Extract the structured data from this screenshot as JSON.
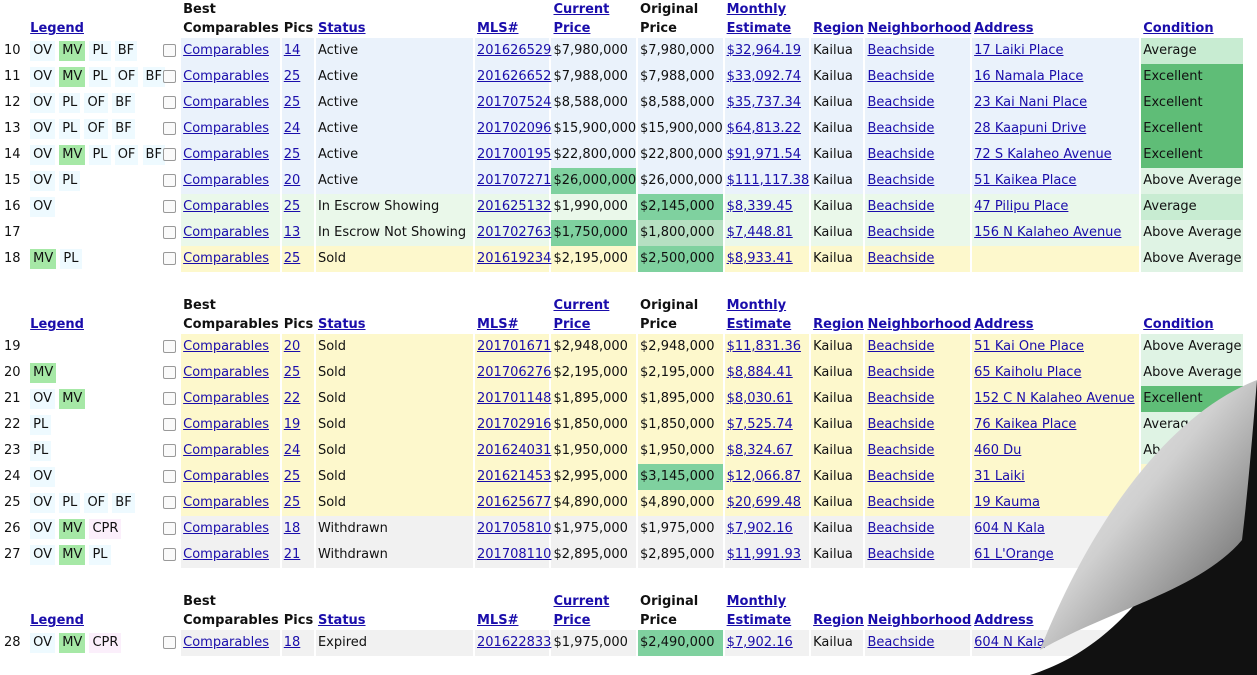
{
  "headers": {
    "legend": "Legend",
    "best": "Best",
    "comparables": "Comparables",
    "pics": "Pics",
    "status": "Status",
    "mls": "MLS#",
    "current": "Current",
    "current2": "Price",
    "original": "Original",
    "original2": "Price",
    "monthly": "Monthly",
    "estimate": "Estimate",
    "region": "Region",
    "neighborhood": "Neighborhood",
    "address": "Address",
    "condition": "Condition"
  },
  "sections": [
    {
      "rows": [
        {
          "num": "10",
          "tags": [
            "OV",
            "MV",
            "PL",
            "BF"
          ],
          "comp": "Comparables",
          "pics": "14",
          "status": "Active",
          "mls": "201626529",
          "current": "$7,980,000",
          "original": "$7,980,000",
          "monthly": "$32,964.19",
          "region": "Kailua",
          "neighborhood": "Beachside",
          "address": "17 Laiki Place",
          "condition": "Average"
        },
        {
          "num": "11",
          "tags": [
            "OV",
            "MV",
            "PL",
            "OF",
            "BF"
          ],
          "comp": "Comparables",
          "pics": "25",
          "status": "Active",
          "mls": "201626652",
          "current": "$7,988,000",
          "original": "$7,988,000",
          "monthly": "$33,092.74",
          "region": "Kailua",
          "neighborhood": "Beachside",
          "address": "16 Namala Place",
          "condition": "Excellent"
        },
        {
          "num": "12",
          "tags": [
            "OV",
            "PL",
            "OF",
            "BF"
          ],
          "comp": "Comparables",
          "pics": "25",
          "status": "Active",
          "mls": "201707524",
          "current": "$8,588,000",
          "original": "$8,588,000",
          "monthly": "$35,737.34",
          "region": "Kailua",
          "neighborhood": "Beachside",
          "address": "23 Kai Nani Place",
          "condition": "Excellent"
        },
        {
          "num": "13",
          "tags": [
            "OV",
            "PL",
            "OF",
            "BF"
          ],
          "comp": "Comparables",
          "pics": "24",
          "status": "Active",
          "mls": "201702096",
          "current": "$15,900,000",
          "original": "$15,900,000",
          "monthly": "$64,813.22",
          "region": "Kailua",
          "neighborhood": "Beachside",
          "address": "28 Kaapuni Drive",
          "condition": "Excellent"
        },
        {
          "num": "14",
          "tags": [
            "OV",
            "MV",
            "PL",
            "OF",
            "BF"
          ],
          "comp": "Comparables",
          "pics": "25",
          "status": "Active",
          "mls": "201700195",
          "current": "$22,800,000",
          "original": "$22,800,000",
          "monthly": "$91,971.54",
          "region": "Kailua",
          "neighborhood": "Beachside",
          "address": "72 S Kalaheo Avenue",
          "condition": "Excellent"
        },
        {
          "num": "15",
          "tags": [
            "OV",
            "PL"
          ],
          "comp": "Comparables",
          "pics": "20",
          "status": "Active",
          "mls": "201707271",
          "current": "$26,000,000",
          "original": "$26,000,000",
          "monthly": "$111,117.38",
          "region": "Kailua",
          "neighborhood": "Beachside",
          "address": "51 Kaikea Place",
          "condition": "Above Average",
          "hlCur": true
        },
        {
          "num": "16",
          "tags": [
            "OV"
          ],
          "comp": "Comparables",
          "pics": "25",
          "status": "In Escrow Showing",
          "mls": "201625132",
          "current": "$1,990,000",
          "original": "$2,145,000",
          "monthly": "$8,339.45",
          "region": "Kailua",
          "neighborhood": "Beachside",
          "address": "47 Pilipu Place",
          "condition": "Average",
          "hlOrig": true
        },
        {
          "num": "17",
          "tags": [],
          "comp": "Comparables",
          "pics": "13",
          "status": "In Escrow Not Showing",
          "mls": "201702763",
          "current": "$1,750,000",
          "original": "$1,800,000",
          "monthly": "$7,448.81",
          "region": "Kailua",
          "neighborhood": "Beachside",
          "address": "156 N Kalaheo Avenue",
          "condition": "Above Average",
          "hlCur": true,
          "hlOrig2": true
        },
        {
          "num": "18",
          "tags": [
            "MV",
            "PL"
          ],
          "comp": "Comparables",
          "pics": "25",
          "status": "Sold",
          "mls": "201619234",
          "current": "$2,195,000",
          "original": "$2,500,000",
          "monthly": "$8,933.41",
          "region": "Kailua",
          "neighborhood": "Beachside",
          "address": "",
          "condition": "Above Average",
          "hlOrig": true
        }
      ]
    },
    {
      "rows": [
        {
          "num": "19",
          "tags": [],
          "comp": "Comparables",
          "pics": "20",
          "status": "Sold",
          "mls": "201701671",
          "current": "$2,948,000",
          "original": "$2,948,000",
          "monthly": "$11,831.36",
          "region": "Kailua",
          "neighborhood": "Beachside",
          "address": "51 Kai One Place",
          "condition": "Above Average"
        },
        {
          "num": "20",
          "tags": [
            "MV"
          ],
          "comp": "Comparables",
          "pics": "25",
          "status": "Sold",
          "mls": "201706276",
          "current": "$2,195,000",
          "original": "$2,195,000",
          "monthly": "$8,884.41",
          "region": "Kailua",
          "neighborhood": "Beachside",
          "address": "65 Kaiholu Place",
          "condition": "Above Average"
        },
        {
          "num": "21",
          "tags": [
            "OV",
            "MV"
          ],
          "comp": "Comparables",
          "pics": "22",
          "status": "Sold",
          "mls": "201701148",
          "current": "$1,895,000",
          "original": "$1,895,000",
          "monthly": "$8,030.61",
          "region": "Kailua",
          "neighborhood": "Beachside",
          "address": "152 C N Kalaheo Avenue",
          "condition": "Excellent"
        },
        {
          "num": "22",
          "tags": [
            "PL"
          ],
          "comp": "Comparables",
          "pics": "19",
          "status": "Sold",
          "mls": "201702916",
          "current": "$1,850,000",
          "original": "$1,850,000",
          "monthly": "$7,525.74",
          "region": "Kailua",
          "neighborhood": "Beachside",
          "address": "76 Kaikea Place",
          "condition": "Average, Fair"
        },
        {
          "num": "23",
          "tags": [
            "PL"
          ],
          "comp": "Comparables",
          "pics": "24",
          "status": "Sold",
          "mls": "201624031",
          "current": "$1,950,000",
          "original": "$1,950,000",
          "monthly": "$8,324.67",
          "region": "Kailua",
          "neighborhood": "Beachside",
          "address": "460 Du",
          "condition": "Ab"
        },
        {
          "num": "24",
          "tags": [
            "OV"
          ],
          "comp": "Comparables",
          "pics": "25",
          "status": "Sold",
          "mls": "201621453",
          "current": "$2,995,000",
          "original": "$3,145,000",
          "monthly": "$12,066.87",
          "region": "Kailua",
          "neighborhood": "Beachside",
          "address": "31 Laiki",
          "condition": "",
          "hlOrig": true
        },
        {
          "num": "25",
          "tags": [
            "OV",
            "PL",
            "OF",
            "BF"
          ],
          "comp": "Comparables",
          "pics": "25",
          "status": "Sold",
          "mls": "201625677",
          "current": "$4,890,000",
          "original": "$4,890,000",
          "monthly": "$20,699.48",
          "region": "Kailua",
          "neighborhood": "Beachside",
          "address": "19 Kauma",
          "condition": ""
        },
        {
          "num": "26",
          "tags": [
            "OV",
            "MV",
            "CPR"
          ],
          "comp": "Comparables",
          "pics": "18",
          "status": "Withdrawn",
          "mls": "201705810",
          "current": "$1,975,000",
          "original": "$1,975,000",
          "monthly": "$7,902.16",
          "region": "Kailua",
          "neighborhood": "Beachside",
          "address": "604 N Kala",
          "condition": ""
        },
        {
          "num": "27",
          "tags": [
            "OV",
            "MV",
            "PL"
          ],
          "comp": "Comparables",
          "pics": "21",
          "status": "Withdrawn",
          "mls": "201708110",
          "current": "$2,895,000",
          "original": "$2,895,000",
          "monthly": "$11,991.93",
          "region": "Kailua",
          "neighborhood": "Beachside",
          "address": "61 L'Orange",
          "condition": ""
        }
      ]
    },
    {
      "rows": [
        {
          "num": "28",
          "tags": [
            "OV",
            "MV",
            "CPR"
          ],
          "comp": "Comparables",
          "pics": "18",
          "status": "Expired",
          "mls": "201622833",
          "current": "$1,975,000",
          "original": "$2,490,000",
          "monthly": "$7,902.16",
          "region": "Kailua",
          "neighborhood": "Beachside",
          "address": "604 N Kala",
          "condition": "",
          "hlOrig": true
        }
      ]
    }
  ],
  "colors": {
    "accent_link": "#1a0dab",
    "mv_tag": "#a6e8a6",
    "excellent": "#5fbd77",
    "highlight": "#7fd19f",
    "active_row": "#eaf2fb",
    "escrow_row": "#eaf8ea",
    "sold_row": "#fdf8cc",
    "withdrawn_row": "#f1f1f1"
  }
}
